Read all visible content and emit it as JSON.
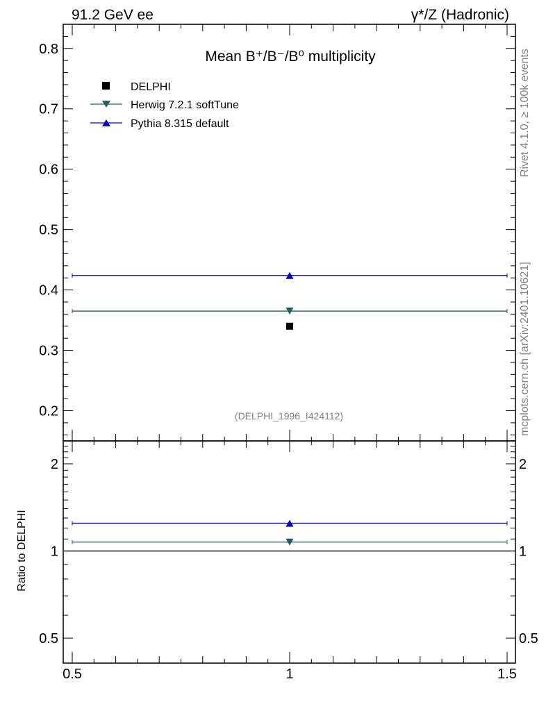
{
  "header": {
    "left": "91.2 GeV ee",
    "right": "γ*/Z (Hadronic)"
  },
  "side_labels": {
    "rivet": "Rivet 4.1.0, ≥ 100k events",
    "mcplots": "mcplots.cern.ch [arXiv:2401.10621]"
  },
  "colors": {
    "data": "#000000",
    "herwig": "#1f5f66",
    "pythia": "#0000cc"
  },
  "chart_data": [
    {
      "type": "scatter",
      "title": "Mean B⁺/B⁻/B⁰ multiplicity",
      "watermark": "(DELPHI_1996_I424112)",
      "xlim": [
        0.5,
        1.5
      ],
      "ylim": [
        0.15,
        0.84
      ],
      "yticks": [
        0.2,
        0.3,
        0.4,
        0.5,
        0.6,
        0.7,
        0.8
      ],
      "ytick_labels": [
        "0.2",
        "0.3",
        "0.4",
        "0.5",
        "0.6",
        "0.7",
        "0.8"
      ],
      "legend_position": "top-left",
      "series": [
        {
          "name": "DELPHI",
          "marker": "square",
          "x": [
            1.0
          ],
          "y": [
            0.34
          ],
          "xerr": [
            0
          ]
        },
        {
          "name": "Herwig 7.2.1 softTune",
          "marker": "triangle-down",
          "x": [
            1.0
          ],
          "y": [
            0.365
          ],
          "xerr": [
            0.5
          ]
        },
        {
          "name": "Pythia 8.315 default",
          "marker": "triangle-up",
          "x": [
            1.0
          ],
          "y": [
            0.424
          ],
          "xerr": [
            0.5
          ]
        }
      ]
    },
    {
      "type": "scatter",
      "ylabel": "Ratio to DELPHI",
      "yscale": "log",
      "xlim": [
        0.5,
        1.5
      ],
      "ylim": [
        0.41,
        2.4
      ],
      "yticks": [
        0.5,
        1,
        2
      ],
      "ytick_labels": [
        "0.5",
        "1",
        "2"
      ],
      "xticks": [
        0.5,
        1,
        1.5
      ],
      "xtick_labels": [
        "0.5",
        "1",
        "1.5"
      ],
      "reference_line": 1.0,
      "series": [
        {
          "name": "Herwig 7.2.1 softTune",
          "marker": "triangle-down",
          "x": [
            1.0
          ],
          "y": [
            1.073
          ]
        },
        {
          "name": "Pythia 8.315 default",
          "marker": "triangle-up",
          "x": [
            1.0
          ],
          "y": [
            1.247
          ]
        }
      ]
    }
  ]
}
